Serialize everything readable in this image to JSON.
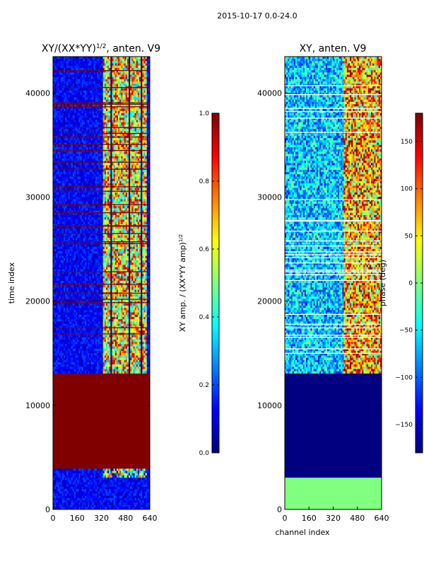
{
  "figure": {
    "suptitle": "2015-10-17 0.0-24.0",
    "xlabel": "channel index",
    "ylabel": "time index"
  },
  "colors": {
    "jet_stops": [
      "#00007f",
      "#0000ff",
      "#007fff",
      "#00ffff",
      "#7fff7f",
      "#ffff00",
      "#ff7f00",
      "#ff0000",
      "#7f0000"
    ],
    "gridline": "#ffffff"
  },
  "chart_data": [
    {
      "type": "heatmap",
      "title_prefix": "XY/(XX*YY)",
      "title_exponent": "1/2",
      "title_suffix": ", anten. V9",
      "xlim": [
        0,
        640
      ],
      "ylim": [
        0,
        43500
      ],
      "xticks": [
        0,
        160,
        320,
        480,
        640
      ],
      "yticks": [
        0,
        10000,
        20000,
        30000,
        40000
      ],
      "colorbar": {
        "label_prefix": "XY amp. / (XX*YY amp)",
        "label_exponent": "1/2",
        "range": [
          0.0,
          1.0
        ],
        "ticks": [
          "0.0",
          "0.2",
          "0.4",
          "0.6",
          "0.8",
          "1.0"
        ]
      },
      "regions": [
        {
          "name": "masked-block",
          "t_start": 4000,
          "t_end": 13000,
          "value": 1.0
        },
        {
          "name": "low-block",
          "t_start": 0,
          "t_end": 4000,
          "value": 0.05
        },
        {
          "name": "active-band-channels",
          "ch_start": 320,
          "ch_end": 640,
          "mean_value": 0.55
        }
      ]
    },
    {
      "type": "heatmap",
      "title": "XY, anten. V9",
      "xlim": [
        0,
        640
      ],
      "ylim": [
        0,
        43500
      ],
      "xticks": [
        0,
        160,
        320,
        480,
        640
      ],
      "yticks": [
        0,
        10000,
        20000,
        30000,
        40000
      ],
      "colorbar": {
        "label": "phase (deg)",
        "range": [
          -180,
          180
        ],
        "ticks": [
          "150",
          "100",
          "50",
          "0",
          "−50",
          "−100",
          "−150"
        ]
      },
      "regions": [
        {
          "name": "green-block",
          "t_start": 0,
          "t_end": 3000,
          "value": 0
        },
        {
          "name": "masked-block",
          "t_start": 3000,
          "t_end": 13000,
          "value": -180
        },
        {
          "name": "active-band-channels",
          "ch_start": 400,
          "ch_end": 640,
          "mean_value": 90
        }
      ]
    }
  ]
}
